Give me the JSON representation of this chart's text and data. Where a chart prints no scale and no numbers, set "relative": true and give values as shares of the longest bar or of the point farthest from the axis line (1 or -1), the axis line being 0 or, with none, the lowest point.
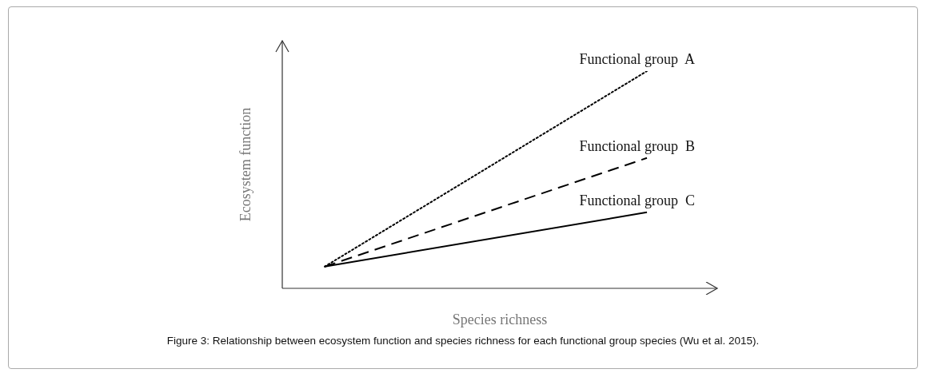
{
  "chart_data": {
    "type": "line",
    "relative": true,
    "xlabel": "Species richness",
    "ylabel": "Ecosystem function",
    "categories": [
      null,
      null
    ],
    "annotations": [
      "Figure 3: Relationship between ecosystem function and species richness for each functional group species (Wu et al. 2015)."
    ],
    "series": [
      {
        "name": "Functional group  A",
        "color": "#000000",
        "line_style": "dotted",
        "values": [
          0.1,
          1
        ]
      },
      {
        "name": "Functional group  B",
        "color": "#000000",
        "line_style": "dashed",
        "values": [
          0.1,
          0.6
        ]
      },
      {
        "name": "Functional group  C",
        "color": "#000000",
        "line_style": "solid",
        "values": [
          0.1,
          0.35
        ]
      }
    ],
    "legend": false
  }
}
